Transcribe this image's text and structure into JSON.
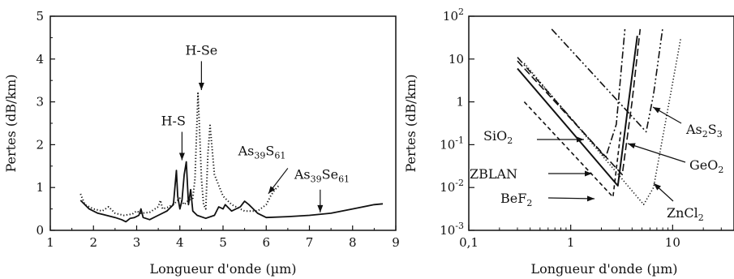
{
  "chart_data": [
    {
      "type": "line",
      "xlabel": "Longueur d'onde (µm)",
      "ylabel": "Pertes (dB/km)",
      "xlim": [
        1,
        9
      ],
      "ylim": [
        0,
        5
      ],
      "x_ticks": [
        1,
        2,
        3,
        4,
        5,
        6,
        7,
        8,
        9
      ],
      "y_ticks": [
        0,
        1,
        2,
        3,
        4,
        5
      ],
      "x_tick_labels": [
        "1",
        "2",
        "3",
        "4",
        "5",
        "6",
        "7",
        "8",
        "9"
      ],
      "y_tick_labels": [
        "0",
        "1",
        "2",
        "3",
        "4",
        "5"
      ],
      "grid": false,
      "series": [
        {
          "name_base": "As",
          "name_sub1": "39",
          "name_mid": "S",
          "name_sub2": "61",
          "style": "dotted",
          "color": "#111111",
          "x": [
            1.7,
            1.8,
            2.0,
            2.2,
            2.35,
            2.5,
            2.7,
            2.9,
            3.0,
            3.1,
            3.3,
            3.5,
            3.55,
            3.6,
            3.75,
            3.9,
            4.0,
            4.1,
            4.2,
            4.3,
            4.35,
            4.42,
            4.45,
            4.5,
            4.55,
            4.6,
            4.65,
            4.7,
            4.8,
            5.0,
            5.2,
            5.5,
            5.8,
            6.0,
            6.1,
            6.2,
            6.3
          ],
          "y": [
            0.85,
            0.6,
            0.5,
            0.45,
            0.55,
            0.4,
            0.35,
            0.38,
            0.45,
            0.4,
            0.42,
            0.55,
            0.7,
            0.5,
            0.55,
            0.65,
            0.75,
            0.6,
            0.7,
            0.75,
            1.2,
            3.2,
            2.5,
            1.2,
            0.6,
            0.5,
            1.8,
            2.45,
            1.3,
            0.8,
            0.6,
            0.45,
            0.45,
            0.6,
            0.8,
            0.95,
            1.05
          ]
        },
        {
          "name_base": "As",
          "name_sub1": "39",
          "name_mid": "Se",
          "name_sub2": "61",
          "style": "solid",
          "color": "#111111",
          "x": [
            1.7,
            1.9,
            2.1,
            2.3,
            2.5,
            2.65,
            2.75,
            2.85,
            2.95,
            3.05,
            3.1,
            3.15,
            3.3,
            3.5,
            3.7,
            3.85,
            3.92,
            3.95,
            4.0,
            4.05,
            4.1,
            4.15,
            4.2,
            4.25,
            4.3,
            4.4,
            4.6,
            4.8,
            4.9,
            5.0,
            5.05,
            5.2,
            5.4,
            5.5,
            5.6,
            5.8,
            6.0,
            6.5,
            7.0,
            7.5,
            8.0,
            8.5,
            8.7
          ],
          "y": [
            0.7,
            0.5,
            0.4,
            0.35,
            0.3,
            0.25,
            0.2,
            0.28,
            0.3,
            0.35,
            0.5,
            0.3,
            0.25,
            0.35,
            0.45,
            0.6,
            1.4,
            0.8,
            0.5,
            0.7,
            1.3,
            1.6,
            0.6,
            0.95,
            0.45,
            0.35,
            0.28,
            0.35,
            0.55,
            0.5,
            0.6,
            0.45,
            0.55,
            0.68,
            0.6,
            0.4,
            0.3,
            0.32,
            0.35,
            0.4,
            0.5,
            0.6,
            0.62
          ]
        }
      ],
      "annotations": [
        {
          "text": "H-Se",
          "target_x": 4.5,
          "target_y": 3.2
        },
        {
          "text": "H-S",
          "target_x": 4.05,
          "target_y": 1.6
        },
        {
          "text_base": "As",
          "text_sub1": "39",
          "text_mid": "S",
          "text_sub2": "61",
          "target_x": 6.05,
          "target_y": 0.82
        },
        {
          "text_base": "As",
          "text_sub1": "39",
          "text_mid": "Se",
          "text_sub2": "61",
          "target_x": 7.25,
          "target_y": 0.38
        }
      ]
    },
    {
      "type": "line",
      "xscale": "log",
      "yscale": "log",
      "xlabel": "Longueur d'onde (µm)",
      "ylabel": "Pertes (dB/km)",
      "xlim": [
        0.1,
        40
      ],
      "ylim": [
        0.001,
        100
      ],
      "x_ticks": [
        0.1,
        1,
        10
      ],
      "x_tick_labels": [
        "0,1",
        "1",
        "10"
      ],
      "y_ticks": [
        0.001,
        0.01,
        0.1,
        1,
        10,
        100
      ],
      "y_tick_labels": [
        {
          "base": "10",
          "exp": "-3"
        },
        {
          "base": "10",
          "exp": "-2"
        },
        {
          "base": "10",
          "exp": "-1"
        },
        {
          "base": "1",
          "exp": ""
        },
        {
          "base": "10",
          "exp": ""
        },
        {
          "base": "10",
          "exp": "2"
        }
      ],
      "grid": false,
      "series": [
        {
          "label_base": "SiO",
          "label_sub": "2",
          "style": "solid",
          "x": [
            0.3,
            2.9,
            3.7,
            4.5
          ],
          "y": [
            6,
            0.011,
            1.0,
            35
          ]
        },
        {
          "label_base": "ZBLAN",
          "label_sub": "",
          "style": "dashed",
          "x": [
            0.3,
            3.2,
            4.0,
            4.8
          ],
          "y": [
            9,
            0.02,
            1.0,
            50
          ]
        },
        {
          "label_base": "BeF",
          "label_sub": "2",
          "style": "short-dash",
          "x": [
            0.35,
            2.6,
            3.1
          ],
          "y": [
            1.0,
            0.006,
            0.2
          ]
        },
        {
          "label_base": "GeO",
          "label_sub": "2",
          "style": "dash-dot",
          "x": [
            0.3,
            2.2,
            2.8,
            3.4
          ],
          "y": [
            11,
            0.05,
            0.3,
            50
          ]
        },
        {
          "label_base": "As",
          "label_sub": "2",
          "label_mid": "S",
          "label_sub2": "3",
          "style": "dash-dot-dot",
          "x": [
            0.65,
            5.5,
            6.5,
            8.0
          ],
          "y": [
            50,
            0.2,
            1.5,
            55
          ]
        },
        {
          "label_base": "ZnCl",
          "label_sub": "2",
          "style": "dotted",
          "x": [
            0.35,
            5.2,
            6.5,
            12.0
          ],
          "y": [
            8,
            0.004,
            0.01,
            30
          ]
        }
      ]
    }
  ]
}
